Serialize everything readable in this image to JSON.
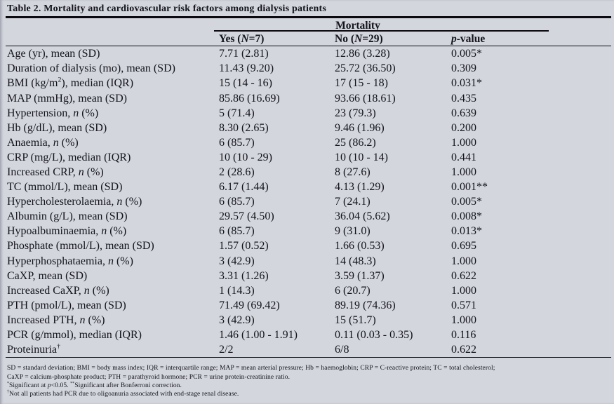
{
  "title": "Table 2. Mortality and cardiovascular risk factors among dialysis patients",
  "group_header": "Mortality",
  "columns": [
    "Yes ({i}N{/i}=7)",
    "No ({i}N{/i}=29)",
    "{i}p{/i}-value"
  ],
  "rows": [
    [
      "Age (yr), mean (SD)",
      "7.71 (2.81)",
      "12.86 (3.28)",
      "0.005*"
    ],
    [
      "Duration of dialysis (mo), mean (SD)",
      "11.43 (9.20)",
      "25.72 (36.50)",
      "0.309"
    ],
    [
      "BMI (kg/m{sup}2{/sup}), median (IQR)",
      "15 (14 - 16)",
      "17 (15 - 18)",
      "0.031*"
    ],
    [
      "MAP (mmHg), mean (SD)",
      "85.86 (16.69)",
      "93.66 (18.61)",
      "0.435"
    ],
    [
      "Hypertension, {i}n{/i} (%)",
      "5 (71.4)",
      "23 (79.3)",
      "0.639"
    ],
    [
      "Hb (g/dL), mean (SD)",
      "8.30 (2.65)",
      "9.46 (1.96)",
      "0.200"
    ],
    [
      "Anaemia, {i}n{/i} (%)",
      "6 (85.7)",
      "25 (86.2)",
      "1.000"
    ],
    [
      "CRP (mg/L), median (IQR)",
      "10 (10 - 29)",
      "10 (10 - 14)",
      "0.441"
    ],
    [
      "Increased CRP, {i}n{/i} (%)",
      "2 (28.6)",
      "8 (27.6)",
      "1.000"
    ],
    [
      "TC (mmol/L), mean (SD)",
      "6.17 (1.44)",
      "4.13 (1.29)",
      "0.001**"
    ],
    [
      "Hypercholesterolaemia, {i}n{/i} (%)",
      "6 (85.7)",
      "7 (24.1)",
      "0.005*"
    ],
    [
      "Albumin (g/L), mean (SD)",
      "29.57 (4.50)",
      "36.04 (5.62)",
      "0.008*"
    ],
    [
      "Hypoalbuminaemia, {i}n{/i} (%)",
      "6 (85.7)",
      "9 (31.0)",
      "0.013*"
    ],
    [
      "Phosphate (mmol/L), mean (SD)",
      "1.57 (0.52)",
      "1.66 (0.53)",
      "0.695"
    ],
    [
      "Hyperphosphataemia, {i}n{/i} (%)",
      "3 (42.9)",
      "14 (48.3)",
      "1.000"
    ],
    [
      "CaXP, mean (SD)",
      "3.31 (1.26)",
      "3.59 (1.37)",
      "0.622"
    ],
    [
      "Increased CaXP, {i}n{/i} (%)",
      "1 (14.3)",
      "6 (20.7)",
      "1.000"
    ],
    [
      "PTH (pmol/L), mean (SD)",
      "71.49 (69.42)",
      "89.19 (74.36)",
      "0.571"
    ],
    [
      "Increased PTH, {i}n{/i} (%)",
      "3 (42.9)",
      "15 (51.7)",
      "1.000"
    ],
    [
      "PCR (g/mmol), median (IQR)",
      "1.46 (1.00 - 1.91)",
      "0.11 (0.03 - 0.35)",
      "0.116"
    ],
    [
      "Proteinuria{sup}†{/sup}",
      "2/2",
      "6/8",
      "0.622"
    ]
  ],
  "footnotes": [
    "SD = standard deviation; BMI = body mass index; IQR = interquartile range; MAP = mean arterial pressure; Hb = haemoglobin; CRP = C-reactive protein; TC = total cholesterol;",
    "CaXP = calcium-phosphate product; PTH = parathyroid hormone; PCR = urine protein-creatinine ratio.",
    "{sup}*{/sup}Significant at {i}p{/i}<0.05. {sup}**{/sup}Significant after Bonferroni correction.",
    "{sup}†{/sup}Not all patients had PCR due to oligoanuria associated with end-stage renal disease."
  ],
  "colors": {
    "background": "#d3d6dc",
    "text": "#14141c",
    "rule": "#0a0a10"
  }
}
